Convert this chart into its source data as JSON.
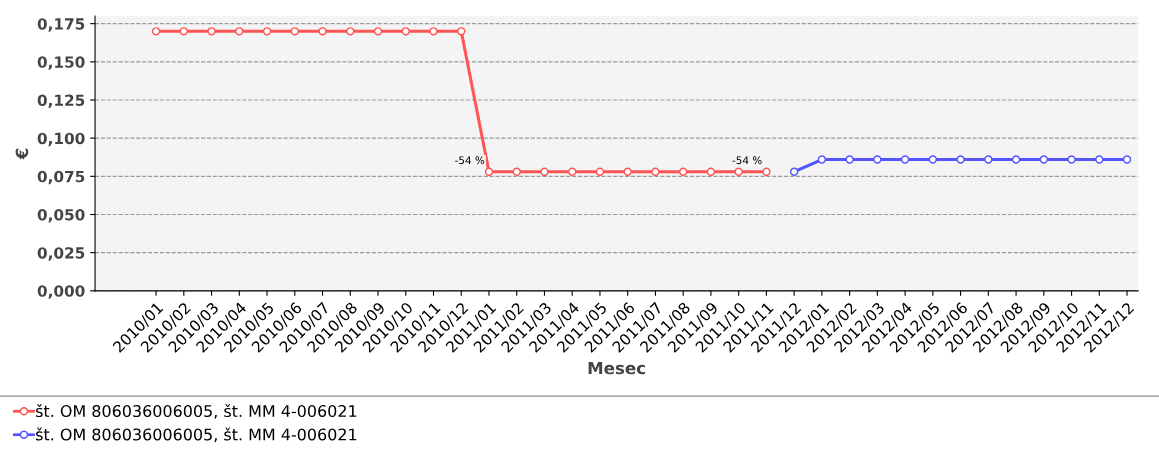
{
  "chart_data": {
    "type": "line",
    "xlabel": "Mesec",
    "ylabel": "€",
    "categories": [
      "2010/01",
      "2010/02",
      "2010/03",
      "2010/04",
      "2010/05",
      "2010/06",
      "2010/07",
      "2010/08",
      "2010/09",
      "2010/10",
      "2010/11",
      "2010/12",
      "2011/01",
      "2011/02",
      "2011/03",
      "2011/04",
      "2011/05",
      "2011/06",
      "2011/07",
      "2011/08",
      "2011/09",
      "2011/10",
      "2011/11",
      "2011/12",
      "2012/01",
      "2012/02",
      "2012/03",
      "2012/04",
      "2012/05",
      "2012/06",
      "2012/07",
      "2012/08",
      "2012/09",
      "2012/10",
      "2012/11",
      "2012/12"
    ],
    "series": [
      {
        "name": "št. OM 806036006005, št. MM 4-006021",
        "color": "#ff5555",
        "values": [
          0.17,
          0.17,
          0.17,
          0.17,
          0.17,
          0.17,
          0.17,
          0.17,
          0.17,
          0.17,
          0.17,
          0.17,
          0.078,
          0.078,
          0.078,
          0.078,
          0.078,
          0.078,
          0.078,
          0.078,
          0.078,
          0.078,
          0.078,
          null,
          null,
          null,
          null,
          null,
          null,
          null,
          null,
          null,
          null,
          null,
          null,
          null
        ]
      },
      {
        "name": "št. OM 806036006005, št. MM 4-006021",
        "color": "#5555ff",
        "values": [
          null,
          null,
          null,
          null,
          null,
          null,
          null,
          null,
          null,
          null,
          null,
          null,
          null,
          null,
          null,
          null,
          null,
          null,
          null,
          null,
          null,
          null,
          null,
          0.078,
          0.086,
          0.086,
          0.086,
          0.086,
          0.086,
          0.086,
          0.086,
          0.086,
          0.086,
          0.086,
          0.086,
          0.086
        ]
      }
    ],
    "ylim": [
      0,
      0.18
    ],
    "yticks": [
      {
        "value": 0,
        "label": "0,000"
      },
      {
        "value": 0.025,
        "label": "0,025"
      },
      {
        "value": 0.05,
        "label": "0,050"
      },
      {
        "value": 0.075,
        "label": "0,075"
      },
      {
        "value": 0.1,
        "label": "0,100"
      },
      {
        "value": 0.125,
        "label": "0,125"
      },
      {
        "value": 0.15,
        "label": "0,150"
      },
      {
        "value": 0.175,
        "label": "0,175"
      }
    ],
    "annotations": [
      {
        "text": "-54 %",
        "x": "2011/01",
        "y": 0.078
      },
      {
        "text": "-54 %",
        "x": "2011/11",
        "y": 0.078
      }
    ],
    "grid": "y",
    "legend": "bottom left",
    "marker": "circle",
    "line_style": "solid"
  }
}
